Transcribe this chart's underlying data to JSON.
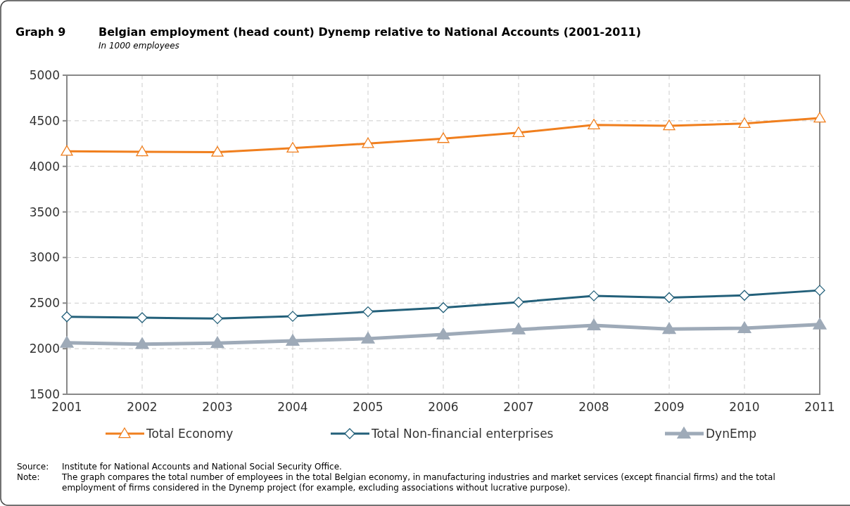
{
  "chart_data": {
    "type": "line",
    "title": "Belgian employment (head count) Dynemp relative to National Accounts (2001-2011)",
    "subtitle": "In 1000 employees",
    "x": [
      2001,
      2002,
      2003,
      2004,
      2005,
      2006,
      2007,
      2008,
      2009,
      2010,
      2011
    ],
    "xlim": [
      2001,
      2011
    ],
    "xticks": [
      2001,
      2002,
      2003,
      2004,
      2005,
      2006,
      2007,
      2008,
      2009,
      2010,
      2011
    ],
    "ylim": [
      1500,
      5000
    ],
    "yticks": [
      1500,
      2000,
      2500,
      3000,
      3500,
      4000,
      4500,
      5000
    ],
    "grid": true,
    "legend": "bottom",
    "line_style": "solid",
    "series": [
      {
        "name": "Total Economy",
        "color": "#f07f1e",
        "marker": "triangle",
        "values": [
          4165,
          4160,
          4155,
          4200,
          4250,
          4305,
          4370,
          4455,
          4445,
          4470,
          4530
        ]
      },
      {
        "name": "Total Non-financial enterprises",
        "color": "#23607a",
        "marker": "diamond",
        "values": [
          2350,
          2340,
          2330,
          2355,
          2405,
          2450,
          2510,
          2580,
          2560,
          2585,
          2640
        ]
      },
      {
        "name": "DynEmp",
        "color": "#9eaab8",
        "marker": "triangle",
        "values": [
          2065,
          2050,
          2060,
          2085,
          2110,
          2155,
          2210,
          2255,
          2215,
          2225,
          2265
        ]
      }
    ],
    "annotations": [
      "Graph 9",
      "Source: Institute for National Accounts and National Social Security Office.",
      "Note: The graph compares the total number of employees in the total Belgian economy, in manufacturing industries and market services (except financial firms) and the total employment of firms considered in the Dynemp project (for example, excluding associations without lucrative purpose)."
    ]
  }
}
